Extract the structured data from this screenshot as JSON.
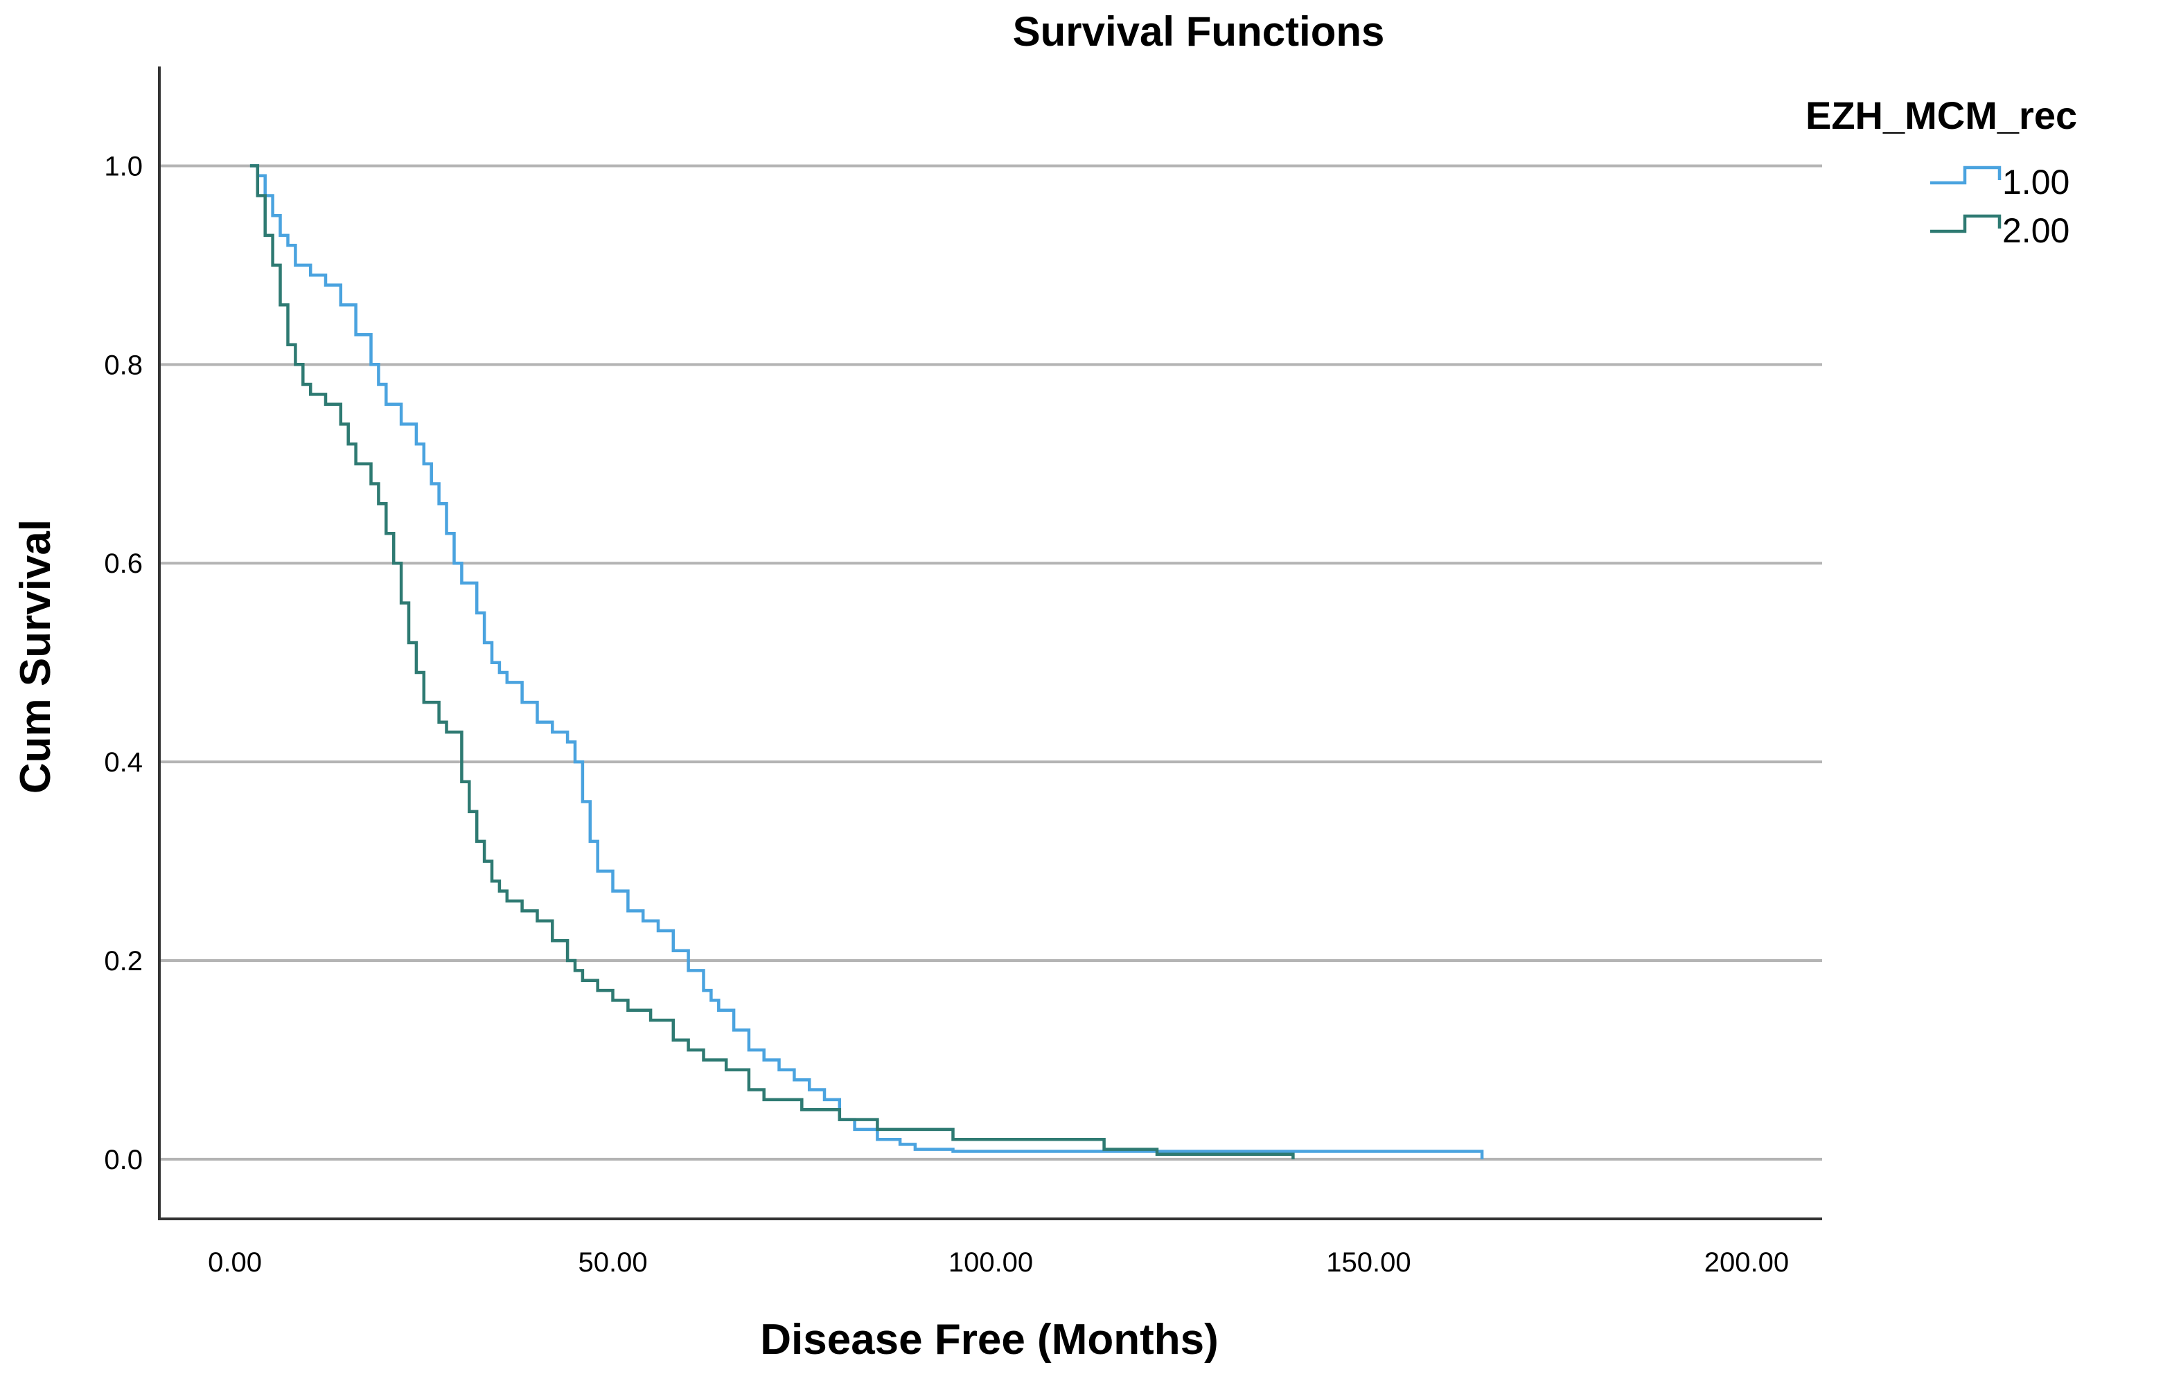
{
  "chart_data": {
    "type": "line",
    "title": "Survival Functions",
    "xlabel": "Disease Free (Months)",
    "ylabel": "Cum Survival",
    "xlim": [
      -10,
      210
    ],
    "ylim": [
      -0.06,
      1.1
    ],
    "xticks": [
      0,
      50,
      100,
      150,
      200
    ],
    "xtick_labels": [
      "0.00",
      "50.00",
      "100.00",
      "150.00",
      "200.00"
    ],
    "yticks": [
      0.0,
      0.2,
      0.4,
      0.6,
      0.8,
      1.0
    ],
    "ytick_labels": [
      "0.0",
      "0.2",
      "0.4",
      "0.6",
      "0.8",
      "1.0"
    ],
    "grid": "horizontal",
    "step": true,
    "legend": {
      "title": "EZH_MCM_rec",
      "position": "top-right"
    },
    "series": [
      {
        "name": "1.00",
        "color": "#4aa3df",
        "x": [
          2,
          3,
          4,
          5,
          6,
          7,
          8,
          10,
          12,
          14,
          16,
          18,
          19,
          20,
          22,
          24,
          25,
          26,
          27,
          28,
          29,
          30,
          32,
          33,
          34,
          35,
          36,
          38,
          40,
          42,
          44,
          45,
          46,
          47,
          48,
          50,
          52,
          54,
          56,
          58,
          60,
          62,
          63,
          64,
          66,
          68,
          70,
          72,
          74,
          76,
          78,
          80,
          82,
          85,
          88,
          90,
          95,
          140,
          160,
          165
        ],
        "y": [
          1.0,
          0.99,
          0.97,
          0.95,
          0.93,
          0.92,
          0.9,
          0.89,
          0.88,
          0.86,
          0.83,
          0.8,
          0.78,
          0.76,
          0.74,
          0.72,
          0.7,
          0.68,
          0.66,
          0.63,
          0.6,
          0.58,
          0.55,
          0.52,
          0.5,
          0.49,
          0.48,
          0.46,
          0.44,
          0.43,
          0.42,
          0.4,
          0.36,
          0.32,
          0.29,
          0.27,
          0.25,
          0.24,
          0.23,
          0.21,
          0.19,
          0.17,
          0.16,
          0.15,
          0.13,
          0.11,
          0.1,
          0.09,
          0.08,
          0.07,
          0.06,
          0.04,
          0.03,
          0.02,
          0.015,
          0.01,
          0.008,
          0.008,
          0.008,
          0.0
        ]
      },
      {
        "name": "2.00",
        "color": "#2e7a72",
        "x": [
          2,
          3,
          4,
          5,
          6,
          7,
          8,
          9,
          10,
          12,
          14,
          15,
          16,
          18,
          19,
          20,
          21,
          22,
          23,
          24,
          25,
          27,
          28,
          30,
          31,
          32,
          33,
          34,
          35,
          36,
          38,
          40,
          42,
          44,
          45,
          46,
          48,
          50,
          52,
          55,
          58,
          60,
          62,
          65,
          68,
          70,
          75,
          80,
          85,
          95,
          115,
          122,
          140
        ],
        "y": [
          1.0,
          0.97,
          0.93,
          0.9,
          0.86,
          0.82,
          0.8,
          0.78,
          0.77,
          0.76,
          0.74,
          0.72,
          0.7,
          0.68,
          0.66,
          0.63,
          0.6,
          0.56,
          0.52,
          0.49,
          0.46,
          0.44,
          0.43,
          0.38,
          0.35,
          0.32,
          0.3,
          0.28,
          0.27,
          0.26,
          0.25,
          0.24,
          0.22,
          0.2,
          0.19,
          0.18,
          0.17,
          0.16,
          0.15,
          0.14,
          0.12,
          0.11,
          0.1,
          0.09,
          0.07,
          0.06,
          0.05,
          0.04,
          0.03,
          0.02,
          0.01,
          0.005,
          0.0
        ]
      }
    ]
  }
}
